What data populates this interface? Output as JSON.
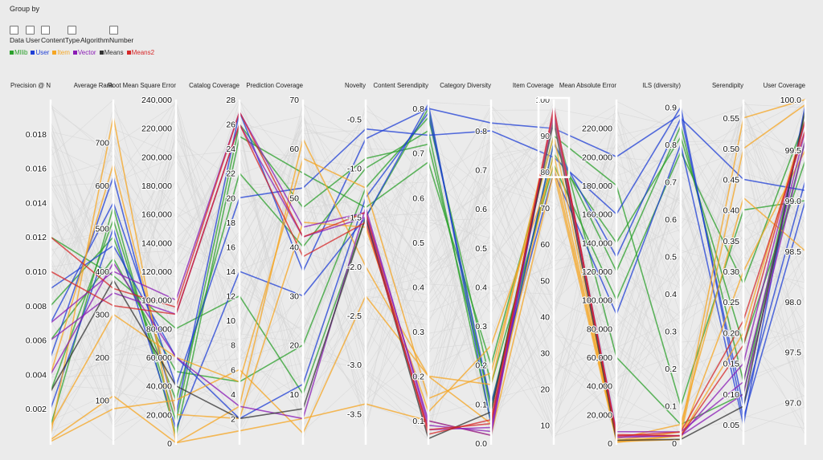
{
  "group_by": {
    "label": "Group by",
    "options": [
      "Data",
      "User",
      "ContentType",
      "Algorithm",
      "Number"
    ]
  },
  "legend": [
    {
      "name": "Mllib",
      "color": "#2ca02c"
    },
    {
      "name": "User",
      "color": "#1f3fd6"
    },
    {
      "name": "Item",
      "color": "#f5a623"
    },
    {
      "name": "Vector",
      "color": "#8a1bb5"
    },
    {
      "name": "Means",
      "color": "#333333"
    },
    {
      "name": "Means2",
      "color": "#d62728"
    }
  ],
  "chart_data": {
    "type": "parallel_coordinates",
    "grid": false,
    "legend_position": "top-left",
    "dimensions": [
      {
        "label": "Precision @ N",
        "range": [
          0,
          0.02
        ],
        "ticks": [
          "0.002",
          "0.004",
          "0.006",
          "0.008",
          "0.010",
          "0.012",
          "0.014",
          "0.016",
          "0.018"
        ]
      },
      {
        "label": "Average Rank",
        "range": [
          0,
          800
        ],
        "ticks": [
          "100",
          "200",
          "300",
          "400",
          "500",
          "600",
          "700"
        ]
      },
      {
        "label": "Root Mean Square Error",
        "range": [
          0,
          240000
        ],
        "ticks": [
          "0",
          "20,000",
          "40,000",
          "60,000",
          "80,000",
          "100,000",
          "120,000",
          "140,000",
          "160,000",
          "180,000",
          "200,000",
          "220,000",
          "240,000"
        ]
      },
      {
        "label": "Catalog Coverage",
        "range": [
          0,
          28
        ],
        "ticks": [
          "2",
          "4",
          "6",
          "8",
          "10",
          "12",
          "14",
          "16",
          "18",
          "20",
          "22",
          "24",
          "26",
          "28"
        ]
      },
      {
        "label": "Prediction Coverage",
        "range": [
          0,
          70
        ],
        "ticks": [
          "10",
          "20",
          "30",
          "40",
          "50",
          "60",
          "70"
        ]
      },
      {
        "label": "Novelty",
        "range": [
          -3.8,
          -0.3
        ],
        "ticks": [
          "-3.5",
          "-3.0",
          "-2.5",
          "-2.0",
          "-1.5",
          "-1.0",
          "-0.5"
        ]
      },
      {
        "label": "Content Serendipity",
        "range": [
          0.05,
          0.82
        ],
        "ticks": [
          "0.1",
          "0.2",
          "0.3",
          "0.4",
          "0.5",
          "0.6",
          "0.7",
          "0.8"
        ]
      },
      {
        "label": "Category Diversity",
        "range": [
          0,
          0.88
        ],
        "ticks": [
          "0.0",
          "0.1",
          "0.2",
          "0.3",
          "0.4",
          "0.5",
          "0.6",
          "0.7",
          "0.8"
        ]
      },
      {
        "label": "Item Coverage",
        "range": [
          5,
          100
        ],
        "ticks": [
          "10",
          "20",
          "30",
          "40",
          "50",
          "60",
          "70",
          "80",
          "90",
          "100"
        ]
      },
      {
        "label": "Mean Absolute Error",
        "range": [
          0,
          240000
        ],
        "ticks": [
          "0",
          "20,000",
          "40,000",
          "60,000",
          "80,000",
          "100,000",
          "120,000",
          "140,000",
          "160,000",
          "180,000",
          "200,000",
          "220,000"
        ]
      },
      {
        "label": "ILS (diversity)",
        "range": [
          0,
          0.92
        ],
        "ticks": [
          "0",
          "0.1",
          "0.2",
          "0.3",
          "0.4",
          "0.5",
          "0.6",
          "0.7",
          "0.8",
          "0.9"
        ]
      },
      {
        "label": "Serendipity",
        "range": [
          0.02,
          0.58
        ],
        "ticks": [
          "0.05",
          "0.10",
          "0.15",
          "0.20",
          "0.25",
          "0.30",
          "0.35",
          "0.40",
          "0.45",
          "0.50",
          "0.55"
        ]
      },
      {
        "label": "User Coverage",
        "range": [
          96.6,
          100.0
        ],
        "ticks": [
          "97.0",
          "97.5",
          "98.0",
          "98.5",
          "99.0",
          "99.5",
          "100.0"
        ]
      }
    ],
    "brush": {
      "dimension": "Item Coverage",
      "range": [
        79,
        100
      ]
    },
    "series": [
      {
        "group": "Mllib",
        "values": [
          0.008,
          480,
          30000,
          22,
          40,
          -1.0,
          0.75,
          0.05,
          88,
          120000,
          0.85,
          0.12,
          99.6
        ]
      },
      {
        "group": "Mllib",
        "values": [
          0.003,
          520,
          15000,
          26,
          48,
          -0.9,
          0.72,
          0.1,
          85,
          140000,
          0.82,
          0.18,
          99.4
        ]
      },
      {
        "group": "Mllib",
        "values": [
          0.006,
          430,
          50000,
          5,
          20,
          -1.2,
          0.78,
          0.15,
          82,
          100000,
          0.78,
          0.28,
          99.8
        ]
      },
      {
        "group": "Mllib",
        "values": [
          0.001,
          550,
          5000,
          25,
          55,
          -1.4,
          0.68,
          0.2,
          90,
          180000,
          0.1,
          0.4,
          99.0
        ]
      },
      {
        "group": "Mllib",
        "values": [
          0.012,
          390,
          80000,
          12,
          10,
          -1.5,
          0.8,
          0.08,
          95,
          60000,
          0.05,
          0.1,
          99.9
        ]
      },
      {
        "group": "User",
        "values": [
          0.005,
          620,
          20000,
          27,
          35,
          -0.7,
          0.8,
          0.82,
          92,
          200000,
          0.88,
          0.08,
          99.2
        ]
      },
      {
        "group": "User",
        "values": [
          0.007,
          560,
          40000,
          20,
          52,
          -0.6,
          0.74,
          0.8,
          84,
          160000,
          0.9,
          0.06,
          99.0
        ]
      },
      {
        "group": "User",
        "values": [
          0.002,
          500,
          10000,
          14,
          30,
          -1.5,
          0.81,
          0.05,
          88,
          130000,
          0.87,
          0.45,
          99.1
        ]
      },
      {
        "group": "User",
        "values": [
          0.009,
          460,
          60000,
          2,
          12,
          -1.3,
          0.79,
          0.1,
          80,
          90000,
          0.8,
          0.05,
          99.95
        ]
      },
      {
        "group": "Item",
        "values": [
          0.0005,
          760,
          100,
          3,
          62,
          -2.0,
          0.2,
          0.05,
          85,
          2000,
          0.03,
          0.55,
          100.0
        ]
      },
      {
        "group": "Item",
        "values": [
          0.0002,
          110,
          200,
          1,
          5,
          -3.4,
          0.1,
          0.02,
          80,
          1500,
          0.02,
          0.5,
          99.95
        ]
      },
      {
        "group": "Item",
        "values": [
          0.001,
          300,
          60000,
          5,
          58,
          -1.2,
          0.15,
          0.18,
          90,
          1000,
          0.01,
          0.3,
          99.5
        ]
      },
      {
        "group": "Item",
        "values": [
          0.004,
          650,
          20000,
          2,
          45,
          -1.6,
          0.12,
          0.25,
          82,
          3000,
          0.05,
          0.42,
          98.5
        ]
      },
      {
        "group": "Item",
        "values": [
          0.0001,
          80,
          30000,
          6,
          2,
          -2.3,
          0.2,
          0.15,
          95,
          500,
          0.02,
          0.2,
          99.8
        ]
      },
      {
        "group": "Vector",
        "values": [
          0.007,
          400,
          100000,
          27,
          44,
          -1.45,
          0.1,
          0.02,
          98,
          5000,
          0.02,
          0.15,
          99.8
        ]
      },
      {
        "group": "Vector",
        "values": [
          0.006,
          350,
          90000,
          26,
          42,
          -1.5,
          0.08,
          0.04,
          97,
          8000,
          0.03,
          0.12,
          99.7
        ]
      },
      {
        "group": "Vector",
        "values": [
          0.004,
          420,
          60000,
          3,
          5,
          -1.4,
          0.09,
          0.03,
          96,
          4000,
          0.02,
          0.1,
          99.6
        ]
      },
      {
        "group": "Means",
        "values": [
          0.003,
          380,
          40000,
          2,
          7,
          -1.5,
          0.06,
          0.08,
          94,
          2000,
          0.01,
          0.08,
          99.9
        ]
      },
      {
        "group": "Means2",
        "values": [
          0.012,
          360,
          95000,
          27,
          42,
          -1.45,
          0.07,
          0.06,
          97,
          6000,
          0.02,
          0.18,
          99.8
        ]
      },
      {
        "group": "Means2",
        "values": [
          0.01,
          320,
          90000,
          26,
          38,
          -1.55,
          0.08,
          0.05,
          98,
          5000,
          0.03,
          0.22,
          99.7
        ]
      }
    ]
  }
}
